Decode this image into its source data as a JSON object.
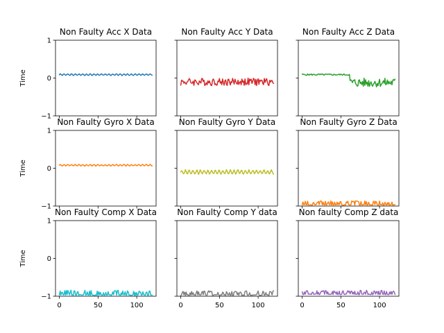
{
  "chart_data": [
    {
      "type": "line",
      "title": "Non Faulty Acc X Data",
      "ylabel": "Time",
      "xlabel": "",
      "xlim": [
        -5,
        125
      ],
      "ylim": [
        -1,
        1
      ],
      "yticks": [
        1,
        0,
        -1
      ],
      "xticks": [],
      "color": "#1f77b4",
      "pattern": "osc",
      "base": 0.09,
      "amp": 0.02,
      "grid": false
    },
    {
      "type": "line",
      "title": "Non Faulty Acc Y Data",
      "ylabel": "",
      "xlabel": "",
      "xlim": [
        -5,
        125
      ],
      "ylim": [
        -1,
        1
      ],
      "yticks": [],
      "xticks": [],
      "color": "#d62728",
      "pattern": "noise",
      "base": -0.1,
      "amp": 0.1,
      "grid": false
    },
    {
      "type": "line",
      "title": "Non Faulty Acc Z Data",
      "ylabel": "",
      "xlabel": "",
      "xlim": [
        -5,
        125
      ],
      "ylim": [
        -1,
        1
      ],
      "yticks": [],
      "xticks": [],
      "color": "#2ca02c",
      "pattern": "step",
      "base": 0.09,
      "amp": 0.02,
      "step_at": 62,
      "base2": -0.12,
      "amp2": 0.12,
      "grid": false
    },
    {
      "type": "line",
      "title": "Non Faulty Gyro X Data",
      "ylabel": "Time",
      "xlabel": "",
      "xlim": [
        -5,
        125
      ],
      "ylim": [
        -1,
        1
      ],
      "yticks": [
        1,
        0,
        -1
      ],
      "xticks": [],
      "color": "#ff7f0e",
      "pattern": "osc",
      "base": 0.08,
      "amp": 0.02,
      "grid": false
    },
    {
      "type": "line",
      "title": "Non Faulty Gyro Y Data",
      "ylabel": "",
      "xlabel": "",
      "xlim": [
        -5,
        125
      ],
      "ylim": [
        -1,
        1
      ],
      "yticks": [],
      "xticks": [],
      "color": "#bcbd22",
      "pattern": "osc",
      "base": -0.1,
      "amp": 0.05,
      "grid": false
    },
    {
      "type": "line",
      "title": "Non Faulty Gyro Z Data",
      "ylabel": "",
      "xlabel": "",
      "xlim": [
        -5,
        125
      ],
      "ylim": [
        -1,
        1
      ],
      "yticks": [],
      "xticks": [],
      "color": "#ff7f0e",
      "pattern": "spikes",
      "base": -0.98,
      "amp": 0.12,
      "grid": false
    },
    {
      "type": "line",
      "title": "Non Faulty Comp X Data",
      "ylabel": "Time",
      "xlabel": "",
      "xlim": [
        -5,
        125
      ],
      "ylim": [
        -1,
        1
      ],
      "yticks": [
        1,
        0,
        -1
      ],
      "xticks": [
        0,
        50,
        100
      ],
      "color": "#17becf",
      "pattern": "spikes",
      "base": -0.98,
      "amp": 0.14,
      "grid": false
    },
    {
      "type": "line",
      "title": "Non Faulty Comp Y data",
      "ylabel": "",
      "xlabel": "",
      "xlim": [
        -5,
        125
      ],
      "ylim": [
        -1,
        1
      ],
      "yticks": [],
      "xticks": [
        0,
        50,
        100
      ],
      "color": "#7f7f7f",
      "pattern": "spikes",
      "base": -0.98,
      "amp": 0.13,
      "grid": false
    },
    {
      "type": "line",
      "title": "Non faulty Comp Z data",
      "ylabel": "",
      "xlabel": "",
      "xlim": [
        -5,
        125
      ],
      "ylim": [
        -1,
        1
      ],
      "yticks": [],
      "xticks": [
        0,
        50,
        100
      ],
      "color": "#9467bd",
      "pattern": "spikes",
      "base": -0.96,
      "amp": 0.12,
      "grid": false
    }
  ]
}
